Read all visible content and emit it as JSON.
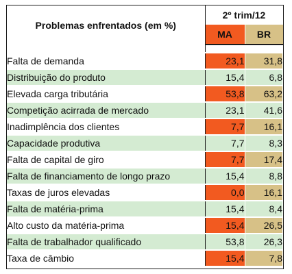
{
  "table": {
    "column_title": "Problemas enfrentados (em %)",
    "period": "2º trim/12",
    "col_ma": "MA",
    "col_br": "BR",
    "rows": [
      {
        "label": "Falta de demanda",
        "ma": "23,1",
        "br": "31,8"
      },
      {
        "label": "Distribuição do produto",
        "ma": "15,4",
        "br": "6,8"
      },
      {
        "label": "Elevada carga tributária",
        "ma": "53,8",
        "br": "63,2"
      },
      {
        "label": "Competição acirrada de mercado",
        "ma": "23,1",
        "br": "41,6"
      },
      {
        "label": "Inadimplência dos clientes",
        "ma": "7,7",
        "br": "16,1"
      },
      {
        "label": "Capacidade produtiva",
        "ma": "7,7",
        "br": "8,3"
      },
      {
        "label": "Falta de capital de giro",
        "ma": "7,7",
        "br": "17,4"
      },
      {
        "label": "Falta de financiamento de longo prazo",
        "ma": "15,4",
        "br": "8,8"
      },
      {
        "label": "Taxas de juros elevadas",
        "ma": "0,0",
        "br": "16,1"
      },
      {
        "label": "Falta de matéria-prima",
        "ma": "15,4",
        "br": "8,4"
      },
      {
        "label": "Alto custo da matéria-prima",
        "ma": "15,4",
        "br": "26,5"
      },
      {
        "label": "Falta de trabalhador qualificado",
        "ma": "53,8",
        "br": "26,3"
      },
      {
        "label": "Taxa de câmbio",
        "ma": "15,4",
        "br": "7,8"
      }
    ]
  },
  "colors": {
    "ma_highlight": "#f25a20",
    "br_highlight": "#d7c187",
    "neutral_green": "#d4ebd2"
  }
}
